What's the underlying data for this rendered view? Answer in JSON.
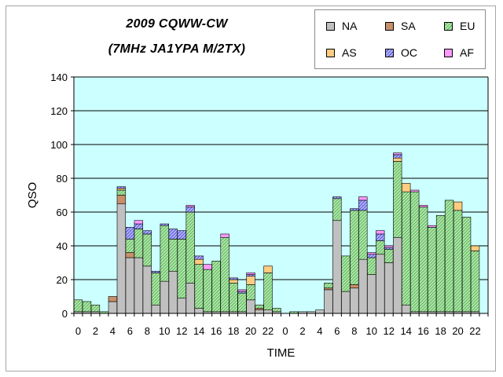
{
  "chart_data": {
    "type": "bar",
    "stacked": true,
    "title": "2009 CQWW-CW",
    "subtitle": "(7MHz JA1YPA  M/2TX)",
    "xlabel": "TIME",
    "ylabel": "QSO",
    "ylim": [
      0,
      140
    ],
    "yticks": [
      0,
      20,
      40,
      60,
      80,
      100,
      120,
      140
    ],
    "grid": true,
    "legend_position": "top-right",
    "plot_background": "#ccffff",
    "categories": [
      "0",
      "1",
      "2",
      "3",
      "4",
      "5",
      "6",
      "7",
      "8",
      "9",
      "10",
      "11",
      "12",
      "13",
      "14",
      "15",
      "16",
      "17",
      "18",
      "19",
      "20",
      "21",
      "22",
      "23",
      "0",
      "1",
      "2",
      "3",
      "4",
      "5",
      "6",
      "7",
      "8",
      "9",
      "10",
      "11",
      "12",
      "13",
      "14",
      "15",
      "16",
      "17",
      "18",
      "19",
      "20",
      "21",
      "22",
      "23"
    ],
    "xtick_labels": [
      "0",
      "",
      "2",
      "",
      "4",
      "",
      "6",
      "",
      "8",
      "",
      "10",
      "",
      "12",
      "",
      "14",
      "",
      "16",
      "",
      "18",
      "",
      "20",
      "",
      "22",
      "",
      "0",
      "",
      "2",
      "",
      "4",
      "",
      "6",
      "",
      "8",
      "",
      "10",
      "",
      "12",
      "",
      "14",
      "",
      "16",
      "",
      "18",
      "",
      "20",
      "",
      "22",
      ""
    ],
    "series": [
      {
        "name": "NA",
        "color": "#c0c0c0",
        "values": [
          1,
          1,
          1,
          0,
          7,
          65,
          33,
          33,
          28,
          5,
          19,
          25,
          9,
          18,
          3,
          1,
          1,
          1,
          1,
          1,
          8,
          2,
          2,
          1,
          0,
          0,
          1,
          1,
          2,
          14,
          55,
          13,
          15,
          32,
          23,
          35,
          30,
          45,
          5,
          1,
          1,
          1,
          1,
          1,
          1,
          1,
          1,
          0
        ]
      },
      {
        "name": "SA",
        "color": "#c8906a",
        "values": [
          0,
          0,
          0,
          0,
          3,
          5,
          3,
          0,
          0,
          0,
          0,
          0,
          0,
          0,
          0,
          0,
          0,
          0,
          0,
          0,
          0,
          1,
          0,
          0,
          0,
          0,
          0,
          0,
          0,
          1,
          0,
          0,
          2,
          0,
          0,
          0,
          0,
          0,
          0,
          0,
          0,
          0,
          0,
          0,
          0,
          0,
          0,
          0
        ]
      },
      {
        "name": "EU",
        "color": "#99dd99",
        "values": [
          7,
          6,
          4,
          1,
          0,
          3,
          8,
          17,
          19,
          19,
          33,
          19,
          35,
          42,
          26,
          25,
          30,
          44,
          17,
          11,
          9,
          2,
          22,
          2,
          0,
          1,
          0,
          0,
          0,
          3,
          13,
          21,
          44,
          29,
          10,
          8,
          8,
          45,
          67,
          71,
          62,
          50,
          57,
          66,
          60,
          56,
          36,
          0
        ]
      },
      {
        "name": "AS",
        "color": "#ffcc80",
        "values": [
          0,
          0,
          0,
          0,
          0,
          1,
          0,
          0,
          0,
          0,
          0,
          0,
          0,
          0,
          3,
          0,
          0,
          0,
          2,
          0,
          5,
          0,
          4,
          0,
          0,
          0,
          0,
          0,
          0,
          0,
          0,
          0,
          0,
          0,
          0,
          0,
          0,
          2,
          5,
          0,
          0,
          0,
          0,
          0,
          5,
          0,
          3,
          0
        ]
      },
      {
        "name": "OC",
        "color": "#9999ff",
        "values": [
          0,
          0,
          0,
          0,
          0,
          1,
          7,
          3,
          2,
          1,
          1,
          6,
          5,
          3,
          2,
          0,
          0,
          0,
          1,
          1,
          1,
          0,
          0,
          0,
          0,
          0,
          0,
          0,
          0,
          0,
          1,
          0,
          1,
          6,
          2,
          4,
          1,
          2,
          0,
          0,
          0,
          0,
          0,
          0,
          0,
          0,
          0,
          0
        ]
      },
      {
        "name": "AF",
        "color": "#ff99ff",
        "values": [
          0,
          0,
          0,
          0,
          0,
          0,
          0,
          2,
          0,
          0,
          0,
          0,
          0,
          1,
          0,
          3,
          0,
          2,
          0,
          1,
          1,
          0,
          0,
          0,
          0,
          0,
          0,
          0,
          0,
          0,
          0,
          0,
          0,
          2,
          1,
          2,
          1,
          1,
          0,
          1,
          1,
          1,
          0,
          0,
          0,
          0,
          0,
          0
        ]
      }
    ]
  }
}
